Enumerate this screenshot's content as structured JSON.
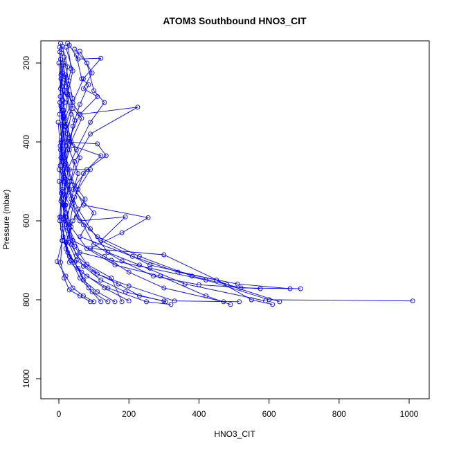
{
  "chart_data": {
    "type": "line",
    "title": "ATOM3 Southbound HNO3_CIT",
    "xlabel": "HNO3_CIT",
    "ylabel": "Pressure (mbar)",
    "xlim": [
      -25,
      1050
    ],
    "ylim": [
      1053,
      150
    ],
    "y_reversed": true,
    "x_ticks": [
      0,
      200,
      400,
      600,
      800,
      1000
    ],
    "y_ticks": [
      200,
      400,
      600,
      800,
      1000
    ],
    "grid": false,
    "legend": "none",
    "color": "#0000ff",
    "marker": "open-circle",
    "series": [
      {
        "points": [
          [
            5,
            150
          ],
          [
            12,
            200
          ],
          [
            8,
            260
          ],
          [
            15,
            320
          ],
          [
            10,
            380
          ],
          [
            6,
            440
          ],
          [
            14,
            500
          ],
          [
            20,
            560
          ],
          [
            30,
            620
          ],
          [
            60,
            680
          ],
          [
            150,
            700
          ],
          [
            260,
            720
          ],
          [
            420,
            750
          ],
          [
            600,
            800
          ],
          [
            1010,
            803
          ]
        ]
      },
      {
        "points": [
          [
            20,
            160
          ],
          [
            40,
            220
          ],
          [
            25,
            280
          ],
          [
            60,
            330
          ],
          [
            225,
            312
          ],
          [
            90,
            380
          ],
          [
            45,
            450
          ],
          [
            30,
            520
          ],
          [
            50,
            590
          ],
          [
            110,
            640
          ],
          [
            230,
            690
          ],
          [
            380,
            740
          ],
          [
            520,
            770
          ],
          [
            690,
            772
          ]
        ]
      },
      {
        "points": [
          [
            30,
            155
          ],
          [
            55,
            190
          ],
          [
            120,
            188
          ],
          [
            70,
            240
          ],
          [
            40,
            300
          ],
          [
            20,
            360
          ],
          [
            15,
            430
          ],
          [
            35,
            500
          ],
          [
            70,
            560
          ],
          [
            255,
            592
          ],
          [
            180,
            630
          ],
          [
            90,
            670
          ],
          [
            300,
            686
          ],
          [
            480,
            762
          ],
          [
            630,
            805
          ]
        ]
      },
      {
        "points": [
          [
            10,
            158
          ],
          [
            25,
            210
          ],
          [
            15,
            270
          ],
          [
            35,
            330
          ],
          [
            20,
            400
          ],
          [
            110,
            405
          ],
          [
            135,
            435
          ],
          [
            80,
            470
          ],
          [
            40,
            520
          ],
          [
            100,
            580
          ],
          [
            60,
            640
          ],
          [
            210,
            690
          ],
          [
            340,
            730
          ],
          [
            510,
            760
          ],
          [
            660,
            772
          ]
        ]
      },
      {
        "points": [
          [
            45,
            165
          ],
          [
            80,
            200
          ],
          [
            100,
            270
          ],
          [
            130,
            300
          ],
          [
            90,
            350
          ],
          [
            50,
            420
          ],
          [
            25,
            470
          ],
          [
            18,
            540
          ],
          [
            60,
            600
          ],
          [
            190,
            590
          ],
          [
            120,
            650
          ],
          [
            260,
            712
          ],
          [
            450,
            750
          ],
          [
            550,
            800
          ],
          [
            610,
            812
          ]
        ]
      },
      {
        "points": [
          [
            8,
            175
          ],
          [
            18,
            235
          ],
          [
            12,
            295
          ],
          [
            22,
            355
          ],
          [
            40,
            410
          ],
          [
            120,
            435
          ],
          [
            70,
            480
          ],
          [
            45,
            540
          ],
          [
            30,
            610
          ],
          [
            80,
            670
          ],
          [
            160,
            712
          ],
          [
            290,
            740
          ],
          [
            420,
            790
          ],
          [
            490,
            812
          ]
        ]
      },
      {
        "points": [
          [
            60,
            170
          ],
          [
            95,
            225
          ],
          [
            70,
            265
          ],
          [
            110,
            285
          ],
          [
            60,
            330
          ],
          [
            30,
            390
          ],
          [
            12,
            450
          ],
          [
            25,
            510
          ],
          [
            55,
            570
          ],
          [
            90,
            620
          ],
          [
            140,
            680
          ],
          [
            230,
            712
          ],
          [
            360,
            760
          ],
          [
            590,
            803
          ]
        ]
      },
      {
        "points": [
          [
            15,
            185
          ],
          [
            28,
            245
          ],
          [
            40,
            290
          ],
          [
            18,
            340
          ],
          [
            10,
            410
          ],
          [
            30,
            470
          ],
          [
            90,
            470
          ],
          [
            55,
            520
          ],
          [
            20,
            590
          ],
          [
            40,
            650
          ],
          [
            130,
            690
          ],
          [
            200,
            730
          ],
          [
            300,
            770
          ],
          [
            470,
            805
          ]
        ]
      },
      {
        "points": [
          [
            25,
            150
          ],
          [
            35,
            215
          ],
          [
            20,
            275
          ],
          [
            45,
            345
          ],
          [
            25,
            420
          ],
          [
            15,
            490
          ],
          [
            40,
            555
          ],
          [
            70,
            610
          ],
          [
            100,
            660
          ],
          [
            180,
            702
          ],
          [
            270,
            740
          ],
          [
            400,
            762
          ],
          [
            575,
            772
          ]
        ]
      },
      {
        "points": [
          [
            5,
            190
          ],
          [
            10,
            250
          ],
          [
            6,
            310
          ],
          [
            14,
            370
          ],
          [
            8,
            430
          ],
          [
            20,
            495
          ],
          [
            12,
            560
          ],
          [
            25,
            625
          ],
          [
            50,
            688
          ],
          [
            110,
            735
          ],
          [
            200,
            765
          ],
          [
            330,
            803
          ],
          [
            515,
            805
          ]
        ]
      },
      {
        "points": [
          [
            0,
            200
          ],
          [
            5,
            265
          ],
          [
            2,
            330
          ],
          [
            8,
            395
          ],
          [
            4,
            460
          ],
          [
            10,
            525
          ],
          [
            6,
            590
          ],
          [
            15,
            650
          ],
          [
            30,
            705
          ],
          [
            80,
            740
          ],
          [
            140,
            770
          ],
          [
            250,
            805
          ],
          [
            320,
            812
          ]
        ]
      },
      {
        "points": [
          [
            2,
            160
          ],
          [
            6,
            230
          ],
          [
            3,
            300
          ],
          [
            10,
            360
          ],
          [
            5,
            420
          ],
          [
            12,
            480
          ],
          [
            8,
            545
          ],
          [
            18,
            600
          ],
          [
            35,
            660
          ],
          [
            70,
            715
          ],
          [
            120,
            750
          ],
          [
            190,
            780
          ],
          [
            305,
            805
          ]
        ]
      },
      {
        "points": [
          [
            12,
            205
          ],
          [
            22,
            260
          ],
          [
            40,
            315
          ],
          [
            65,
            340
          ],
          [
            35,
            400
          ],
          [
            20,
            455
          ],
          [
            45,
            510
          ],
          [
            75,
            545
          ],
          [
            40,
            600
          ],
          [
            20,
            655
          ],
          [
            35,
            700
          ],
          [
            60,
            745
          ],
          [
            95,
            780
          ],
          [
            140,
            805
          ]
        ]
      },
      {
        "points": [
          [
            18,
            230
          ],
          [
            30,
            280
          ],
          [
            15,
            335
          ],
          [
            28,
            390
          ],
          [
            60,
            440
          ],
          [
            35,
            500
          ],
          [
            15,
            560
          ],
          [
            10,
            620
          ],
          [
            25,
            680
          ],
          [
            55,
            720
          ],
          [
            85,
            770
          ],
          [
            120,
            805
          ]
        ]
      },
      {
        "points": [
          [
            6,
            240
          ],
          [
            16,
            300
          ],
          [
            8,
            355
          ],
          [
            20,
            410
          ],
          [
            10,
            475
          ],
          [
            22,
            535
          ],
          [
            12,
            595
          ],
          [
            28,
            655
          ],
          [
            50,
            700
          ],
          [
            100,
            730
          ],
          [
            170,
            760
          ],
          [
            230,
            790
          ],
          [
            300,
            803
          ]
        ]
      },
      {
        "points": [
          [
            3,
            172
          ],
          [
            9,
            225
          ],
          [
            4,
            285
          ],
          [
            12,
            340
          ],
          [
            6,
            400
          ],
          [
            16,
            460
          ],
          [
            9,
            520
          ],
          [
            20,
            580
          ],
          [
            12,
            640
          ],
          [
            30,
            690
          ],
          [
            65,
            730
          ],
          [
            130,
            770
          ],
          [
            200,
            803
          ]
        ]
      },
      {
        "points": [
          [
            50,
            180
          ],
          [
            65,
            240
          ],
          [
            85,
            255
          ],
          [
            60,
            305
          ],
          [
            40,
            360
          ],
          [
            30,
            420
          ],
          [
            55,
            480
          ],
          [
            35,
            545
          ],
          [
            20,
            610
          ],
          [
            45,
            665
          ],
          [
            80,
            710
          ],
          [
            150,
            745
          ],
          [
            180,
            805
          ]
        ]
      },
      {
        "points": [
          [
            10,
            320
          ],
          [
            25,
            380
          ],
          [
            15,
            440
          ],
          [
            30,
            500
          ],
          [
            18,
            560
          ],
          [
            35,
            615
          ],
          [
            20,
            670
          ],
          [
            45,
            705
          ],
          [
            70,
            750
          ],
          [
            110,
            780
          ],
          [
            160,
            805
          ]
        ]
      },
      {
        "points": [
          [
            -2,
            350
          ],
          [
            4,
            410
          ],
          [
            1,
            470
          ],
          [
            7,
            530
          ],
          [
            3,
            590
          ],
          [
            9,
            650
          ],
          [
            5,
            705
          ],
          [
            15,
            745
          ],
          [
            30,
            775
          ],
          [
            60,
            790
          ],
          [
            90,
            805
          ]
        ]
      },
      {
        "points": [
          [
            1,
            500
          ],
          [
            6,
            550
          ],
          [
            3,
            600
          ],
          [
            10,
            650
          ],
          [
            -5,
            703
          ],
          [
            20,
            740
          ],
          [
            40,
            770
          ],
          [
            70,
            790
          ],
          [
            100,
            805
          ]
        ]
      }
    ]
  }
}
